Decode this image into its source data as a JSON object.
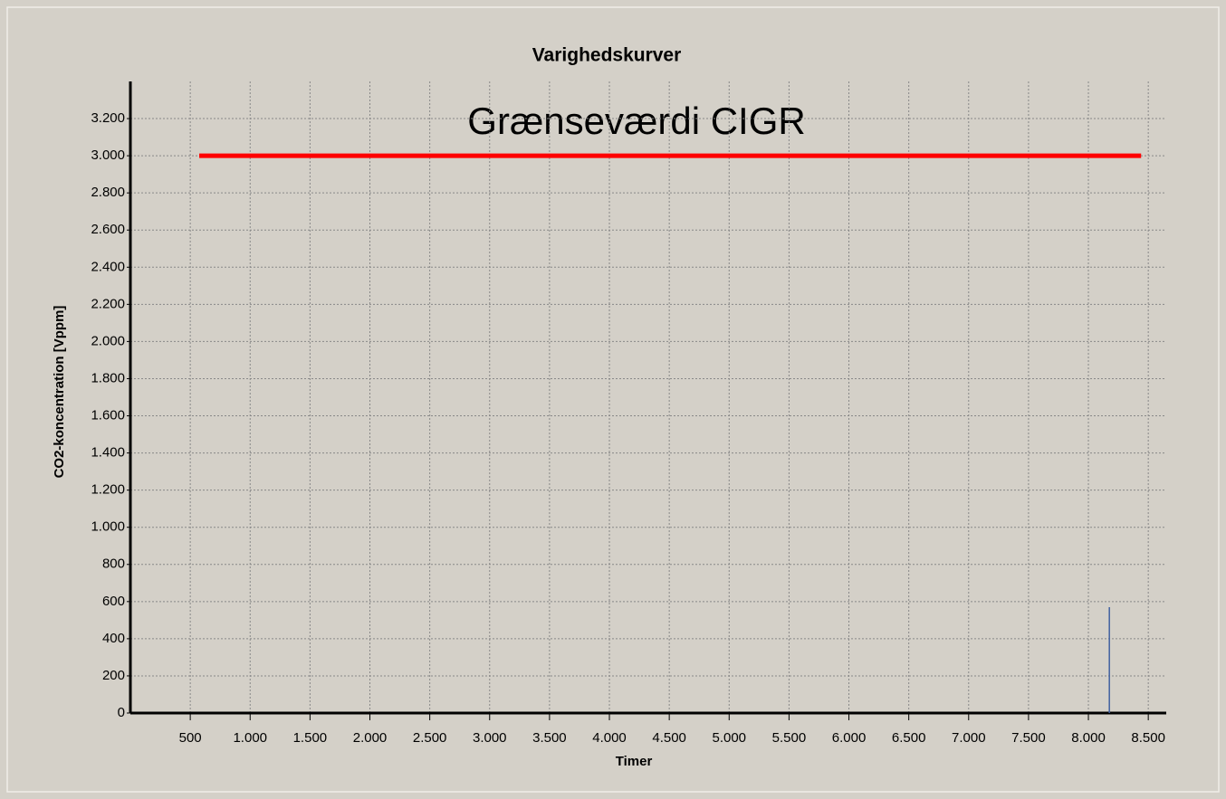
{
  "chart_data": {
    "type": "line",
    "title": "Varighedskurver",
    "xlabel": "Timer",
    "ylabel": "CO2-koncentration [Vppm]",
    "annotation": "Grænseværdi CIGR",
    "xlim": [
      0,
      8650
    ],
    "ylim": [
      0,
      3400
    ],
    "grid": true,
    "xticks": [
      500,
      {
        "value": 1000,
        "label": "1.000"
      },
      {
        "value": 1500,
        "label": "1.500"
      },
      {
        "value": 2000,
        "label": "2.000"
      },
      {
        "value": 2500,
        "label": "2.500"
      },
      {
        "value": 3000,
        "label": "3.000"
      },
      {
        "value": 3500,
        "label": "3.500"
      },
      {
        "value": 4000,
        "label": "4.000"
      },
      {
        "value": 4500,
        "label": "4.500"
      },
      {
        "value": 5000,
        "label": "5.000"
      },
      {
        "value": 5500,
        "label": "5.500"
      },
      {
        "value": 6000,
        "label": "6.000"
      },
      {
        "value": 6500,
        "label": "6.500"
      },
      {
        "value": 7000,
        "label": "7.000"
      },
      {
        "value": 7500,
        "label": "7.500"
      },
      {
        "value": 8000,
        "label": "8.000"
      },
      {
        "value": 8500,
        "label": "8.500"
      }
    ],
    "yticks": [
      0,
      200,
      400,
      600,
      800,
      {
        "value": 1000,
        "label": "1.000"
      },
      {
        "value": 1200,
        "label": "1.200"
      },
      {
        "value": 1400,
        "label": "1.400"
      },
      {
        "value": 1600,
        "label": "1.600"
      },
      {
        "value": 1800,
        "label": "1.800"
      },
      {
        "value": 2000,
        "label": "2.000"
      },
      {
        "value": 2200,
        "label": "2.200"
      },
      {
        "value": 2400,
        "label": "2.400"
      },
      {
        "value": 2600,
        "label": "2.600"
      },
      {
        "value": 2800,
        "label": "2.800"
      },
      {
        "value": 3000,
        "label": "3.000"
      },
      {
        "value": 3200,
        "label": "3.200"
      }
    ],
    "series": [
      {
        "color": "#ff0000",
        "x": [
          575,
          8440
        ],
        "values": [
          3000,
          3000
        ]
      },
      {
        "color": "#4060a0",
        "x": [
          8175,
          8175
        ],
        "values": [
          570,
          0
        ]
      }
    ]
  }
}
